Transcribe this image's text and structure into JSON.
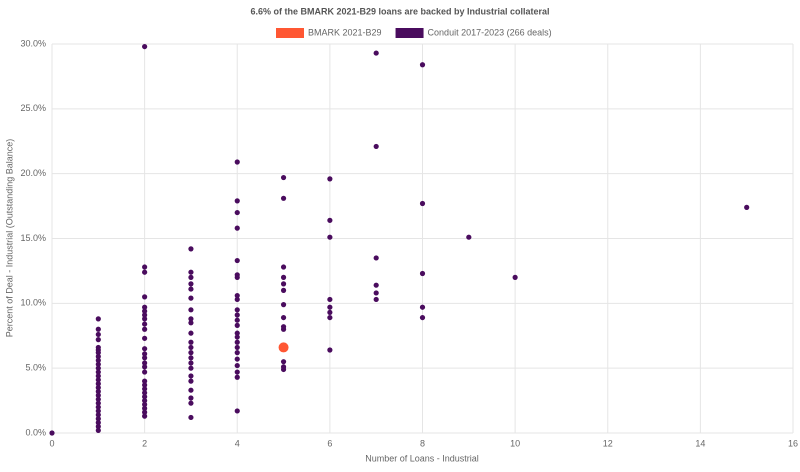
{
  "chart_data": {
    "type": "scatter",
    "title": "6.6% of the BMARK 2021-B29 loans are backed by Industrial collateral",
    "x_label": "Number of Loans - Industrial",
    "y_label": "Percent of Deal - Industrial (Outstanding Balance)",
    "xlim": [
      0,
      16
    ],
    "xticks": [
      0,
      2,
      4,
      6,
      8,
      10,
      12,
      14,
      16
    ],
    "ylim": [
      0,
      30
    ],
    "yticks": [
      {
        "value": 0,
        "label": "0.0%"
      },
      {
        "value": 5,
        "label": "5.0%"
      },
      {
        "value": 10,
        "label": "10.0%"
      },
      {
        "value": 15,
        "label": "15.0%"
      },
      {
        "value": 20,
        "label": "20.0%"
      },
      {
        "value": 25,
        "label": "25.0%"
      },
      {
        "value": 30,
        "label": "30.0%"
      }
    ],
    "grid": true,
    "series": [
      {
        "name": "BMARK 2021-B29",
        "color": "#ff5733",
        "x": [
          5
        ],
        "values": [
          6.6
        ]
      },
      {
        "name": "Conduit 2017-2023 (266 deals)",
        "color": "#4a0c5e",
        "x": [
          0,
          1,
          1,
          1,
          1,
          1,
          1,
          1,
          1,
          1,
          1,
          1,
          1,
          1,
          1,
          1,
          1,
          1,
          1,
          1,
          1,
          1,
          1,
          1,
          1,
          1,
          1,
          1,
          2,
          2,
          2,
          2,
          2,
          2,
          2,
          2,
          2,
          2,
          2,
          2,
          2,
          2,
          2,
          2,
          2,
          2,
          2,
          2,
          2,
          2,
          2,
          2,
          2,
          2,
          2,
          3,
          3,
          3,
          3,
          3,
          3,
          3,
          3,
          3,
          3,
          3,
          3,
          3,
          3,
          3,
          3,
          3,
          3,
          3,
          3,
          3,
          3,
          4,
          4,
          4,
          4,
          4,
          4,
          4,
          4,
          4,
          4,
          4,
          4,
          4,
          4,
          4,
          4,
          4,
          4,
          4,
          4,
          4,
          4,
          4,
          5,
          5,
          5,
          5,
          5,
          5,
          5,
          5,
          5,
          5,
          5,
          5,
          5,
          6,
          6,
          6,
          6,
          6,
          6,
          6,
          6,
          7,
          7,
          7,
          7,
          7,
          7,
          8,
          8,
          8,
          8,
          8,
          9,
          10,
          15
        ],
        "values": [
          0,
          8.8,
          8.0,
          7.6,
          7.2,
          6.6,
          6.4,
          6.2,
          5.9,
          5.6,
          5.3,
          5.0,
          4.7,
          4.4,
          4.1,
          3.8,
          3.5,
          3.2,
          2.9,
          2.6,
          2.3,
          2.0,
          1.7,
          1.4,
          1.1,
          0.8,
          0.5,
          0.2,
          29.8,
          12.8,
          12.4,
          10.5,
          9.7,
          9.4,
          9.1,
          8.8,
          8.4,
          8.0,
          7.3,
          6.5,
          6.1,
          5.8,
          5.4,
          5.1,
          4.7,
          4.0,
          3.7,
          3.4,
          3.1,
          2.8,
          2.5,
          2.2,
          1.9,
          1.6,
          1.3,
          14.2,
          12.4,
          12.0,
          11.5,
          11.1,
          10.4,
          9.5,
          8.8,
          8.5,
          7.7,
          7.0,
          6.6,
          6.2,
          5.8,
          5.4,
          5.0,
          4.4,
          4.0,
          3.3,
          2.7,
          2.3,
          1.2,
          20.9,
          17.9,
          17.0,
          15.8,
          13.3,
          12.2,
          12.0,
          10.6,
          10.3,
          9.5,
          9.1,
          8.7,
          8.3,
          7.7,
          7.4,
          7.0,
          6.6,
          6.2,
          5.7,
          5.2,
          4.7,
          4.3,
          1.7,
          19.7,
          18.1,
          12.8,
          12.0,
          11.5,
          11.0,
          9.9,
          8.9,
          8.2,
          8.0,
          5.5,
          5.1,
          4.9,
          19.6,
          16.4,
          15.1,
          10.3,
          9.7,
          9.3,
          8.9,
          6.4,
          29.3,
          22.1,
          13.5,
          11.4,
          10.8,
          10.3,
          28.4,
          17.7,
          12.3,
          9.7,
          8.9,
          15.1,
          12.0,
          17.4
        ]
      }
    ]
  }
}
